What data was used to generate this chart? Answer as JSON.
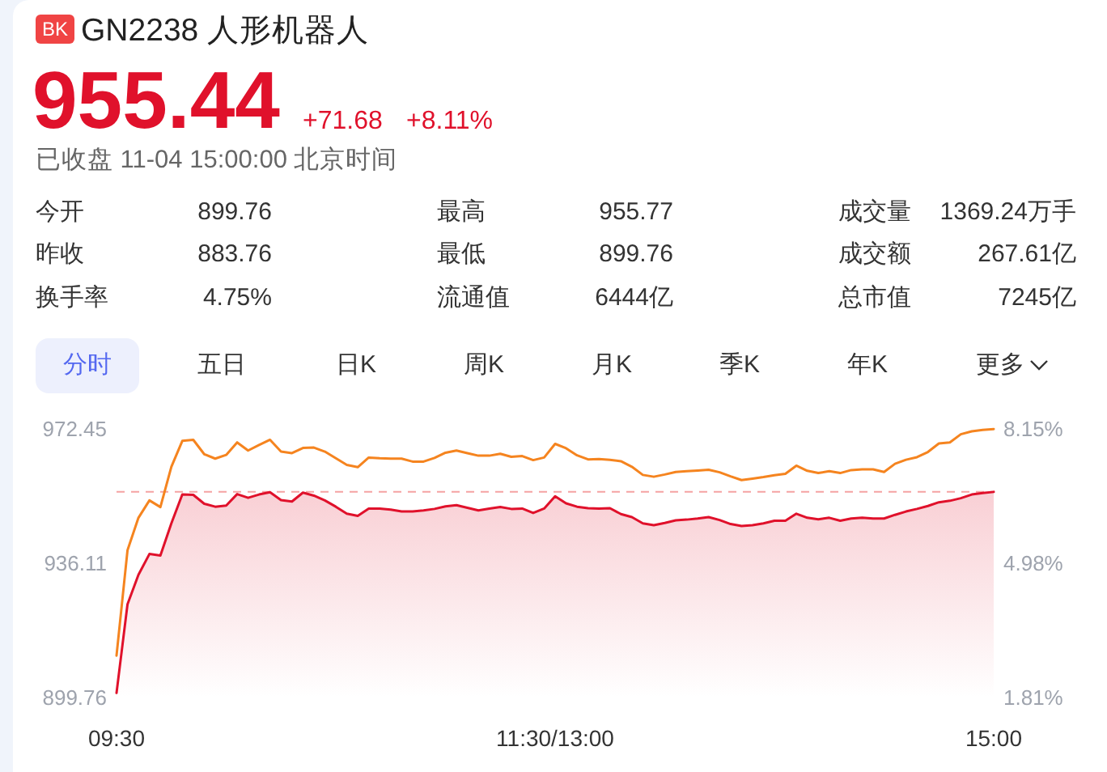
{
  "chart_data": {
    "type": "line",
    "title": "GN2238 人形机器人",
    "subtitle": "已收盘 11-04 15:00:00 北京时间",
    "annotations": [
      "BK",
      "955.44",
      "+71.68",
      "+8.11%",
      "今开",
      "899.76",
      "最高",
      "955.77",
      "成交量",
      "1369.24万手",
      "昨收",
      "883.76",
      "最低",
      "899.76",
      "成交额",
      "267.61亿",
      "换手率",
      "4.75%",
      "流通值",
      "6444亿",
      "总市值",
      "7245亿",
      "分时",
      "五日",
      "日K",
      "周K",
      "月K",
      "季K",
      "年K",
      "更多"
    ],
    "categories": [
      "09:30",
      null,
      null,
      null,
      null,
      null,
      null,
      null,
      null,
      null,
      null,
      null,
      null,
      null,
      null,
      null,
      null,
      null,
      null,
      null,
      null,
      null,
      null,
      null,
      null,
      null,
      null,
      null,
      null,
      null,
      null,
      null,
      null,
      null,
      null,
      null,
      null,
      null,
      null,
      null,
      "11:30/13:00",
      null,
      null,
      null,
      null,
      null,
      null,
      null,
      null,
      null,
      null,
      null,
      null,
      null,
      null,
      null,
      null,
      null,
      null,
      null,
      null,
      null,
      null,
      null,
      null,
      null,
      null,
      null,
      null,
      null,
      null,
      null,
      null,
      null,
      null,
      null,
      null,
      null,
      null,
      null,
      "15:00"
    ],
    "ylim": [
      899.76,
      972.45
    ],
    "yticks": [
      899.76,
      936.11,
      972.45
    ],
    "y2lim": [
      1.81,
      8.15
    ],
    "y2ticks": [
      {
        "value": 1.81,
        "label": "1.81%"
      },
      {
        "value": 4.98,
        "label": "4.98%"
      },
      {
        "value": 8.15,
        "label": "8.15%"
      }
    ],
    "ref_lines": [
      {
        "axis": "y",
        "value": 955.4,
        "color": "#f5a3a3",
        "line_style": "dashed"
      }
    ],
    "series": [
      {
        "color": "#f5841f",
        "values": [
          911.1,
          939.6,
          948.4,
          953.1,
          951.3,
          962.2,
          969.2,
          969.5,
          965.6,
          964.4,
          965.4,
          968.8,
          966.6,
          968.1,
          969.5,
          966.3,
          965.9,
          967.3,
          967.4,
          966.3,
          964.5,
          962.7,
          962.1,
          964.7,
          964.5,
          964.4,
          964.4,
          963.6,
          963.6,
          964.6,
          966.0,
          966.6,
          965.9,
          965.2,
          965.2,
          965.7,
          964.9,
          965.1,
          964.0,
          964.7,
          968.4,
          967.2,
          965.3,
          964.2,
          964.3,
          964.1,
          963.7,
          962.2,
          960.0,
          959.5,
          960.1,
          960.8,
          961.0,
          961.2,
          961.4,
          960.7,
          959.6,
          958.6,
          959.0,
          959.4,
          959.9,
          960.3,
          962.5,
          961.1,
          960.5,
          961.0,
          960.5,
          961.3,
          961.5,
          961.5,
          960.8,
          963.0,
          964.1,
          964.8,
          966.2,
          968.5,
          968.8,
          971.0,
          971.8,
          972.2,
          972.4
        ]
      },
      {
        "type": "area",
        "color": "#e0112b",
        "values": [
          901.0,
          925.0,
          933.0,
          938.6,
          938.2,
          946.9,
          954.7,
          954.6,
          952.2,
          951.4,
          951.7,
          954.8,
          953.8,
          954.7,
          955.3,
          953.2,
          952.8,
          955.2,
          954.4,
          953.1,
          951.4,
          949.5,
          948.9,
          950.9,
          950.9,
          950.6,
          950.1,
          950.1,
          950.4,
          950.8,
          951.5,
          951.8,
          951.1,
          950.4,
          950.9,
          951.3,
          950.8,
          950.9,
          949.7,
          950.9,
          954.2,
          952.3,
          951.4,
          951.0,
          950.9,
          951.0,
          949.4,
          948.6,
          946.9,
          946.4,
          947.0,
          947.7,
          947.9,
          948.2,
          948.6,
          947.8,
          946.7,
          946.2,
          946.4,
          946.9,
          947.6,
          947.6,
          949.5,
          948.4,
          948.0,
          948.4,
          947.6,
          948.2,
          948.4,
          948.2,
          948.2,
          949.2,
          950.1,
          950.8,
          951.6,
          952.6,
          953.0,
          953.7,
          954.7,
          955.1,
          955.4
        ]
      }
    ]
  }
}
